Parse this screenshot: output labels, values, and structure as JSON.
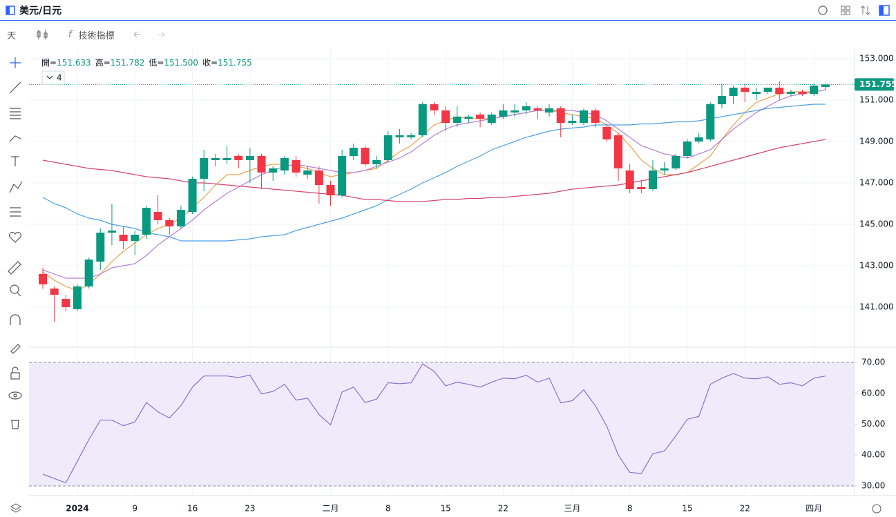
{
  "header": {
    "title": "美元/日元"
  },
  "toolbar": {
    "interval": "天",
    "indicators": "技術指標"
  },
  "chart_data": [
    {
      "type": "candlestick",
      "categories": [
        null,
        null,
        null,
        "2024",
        null,
        null,
        null,
        null,
        "9",
        null,
        null,
        null,
        null,
        "16",
        null,
        null,
        null,
        null,
        "23",
        null,
        null,
        null,
        null,
        null,
        null,
        "二月",
        null,
        null,
        null,
        null,
        "8",
        null,
        null,
        null,
        null,
        "15",
        null,
        null,
        null,
        null,
        "22",
        null,
        null,
        null,
        null,
        null,
        "三月",
        null,
        null,
        null,
        null,
        "8",
        null,
        null,
        null,
        null,
        "15",
        null,
        null,
        null,
        null,
        "22",
        null,
        null,
        null,
        null,
        null,
        "四月",
        null
      ],
      "open": [
        142.6,
        141.9,
        141.4,
        140.9,
        142.0,
        143.2,
        144.6,
        144.5,
        144.2,
        144.5,
        145.6,
        145.2,
        144.9,
        145.6,
        147.2,
        148.1,
        148.1,
        148.3,
        148.1,
        148.3,
        147.5,
        147.6,
        148.1,
        147.4,
        147.6,
        146.9,
        146.4,
        148.3,
        148.7,
        147.9,
        148.1,
        149.2,
        149.2,
        149.3,
        150.8,
        150.5,
        149.9,
        150.1,
        150.3,
        149.9,
        150.2,
        150.4,
        150.5,
        150.6,
        150.4,
        150.6,
        149.9,
        149.9,
        150.5,
        149.7,
        149.3,
        147.6,
        146.8,
        146.7,
        147.6,
        147.7,
        148.3,
        149.0,
        149.1,
        150.8,
        151.2,
        151.6,
        151.3,
        151.4,
        151.6,
        151.3,
        151.4,
        151.3,
        151.633
      ],
      "high": [
        142.9,
        142.0,
        141.6,
        142.1,
        143.4,
        144.8,
        146.0,
        144.9,
        144.7,
        145.9,
        146.4,
        145.3,
        145.9,
        147.3,
        148.6,
        148.4,
        148.8,
        148.4,
        148.7,
        148.4,
        147.8,
        148.3,
        148.3,
        147.8,
        147.8,
        147.1,
        148.6,
        148.9,
        148.8,
        148.3,
        149.5,
        149.6,
        149.4,
        150.9,
        150.9,
        150.7,
        150.7,
        150.3,
        150.4,
        150.4,
        150.8,
        150.8,
        150.9,
        150.7,
        150.8,
        150.7,
        150.3,
        150.6,
        150.6,
        149.8,
        149.4,
        147.9,
        147.1,
        148.1,
        148.0,
        148.4,
        149.1,
        149.4,
        150.9,
        151.8,
        151.7,
        151.8,
        151.6,
        151.6,
        151.9,
        151.5,
        151.5,
        151.8,
        151.782
      ],
      "low": [
        141.9,
        140.3,
        140.8,
        140.8,
        141.9,
        142.8,
        144.0,
        143.8,
        143.5,
        144.3,
        145.0,
        144.5,
        144.8,
        145.5,
        146.6,
        147.8,
        147.9,
        147.7,
        147.0,
        146.7,
        147.1,
        147.4,
        147.3,
        147.2,
        146.0,
        145.9,
        146.3,
        148.1,
        147.8,
        147.7,
        148.0,
        148.9,
        149.1,
        149.2,
        150.3,
        149.5,
        149.7,
        149.9,
        149.7,
        149.8,
        150.1,
        150.2,
        150.3,
        150.1,
        150.2,
        149.2,
        149.8,
        149.8,
        149.7,
        149.0,
        147.1,
        146.5,
        146.5,
        146.6,
        147.4,
        147.6,
        148.2,
        148.9,
        149.0,
        150.6,
        150.8,
        150.9,
        151.0,
        151.3,
        151.0,
        151.2,
        151.2,
        151.2,
        151.5
      ],
      "close": [
        142.1,
        141.6,
        141.0,
        142.0,
        143.3,
        144.6,
        144.7,
        144.2,
        144.5,
        145.8,
        145.2,
        144.9,
        145.7,
        147.2,
        148.2,
        148.2,
        148.2,
        148.1,
        148.3,
        147.5,
        147.7,
        148.2,
        147.5,
        147.6,
        146.9,
        146.4,
        148.3,
        148.7,
        147.9,
        148.1,
        149.3,
        149.3,
        149.3,
        150.8,
        150.5,
        149.9,
        150.2,
        150.2,
        150.1,
        150.3,
        150.5,
        150.5,
        150.7,
        150.5,
        150.6,
        149.9,
        150.0,
        150.5,
        149.9,
        149.1,
        147.7,
        146.7,
        146.7,
        147.6,
        147.7,
        148.3,
        149.0,
        149.2,
        150.8,
        151.2,
        151.6,
        151.4,
        151.4,
        151.6,
        151.3,
        151.4,
        151.3,
        151.7,
        151.755
      ],
      "up_color": "#089981",
      "down_color": "#f23645",
      "lines": [
        {
          "color": "#f0a04b",
          "values": [
            142.7,
            142.3,
            142.0,
            141.8,
            142.1,
            142.6,
            143.2,
            143.7,
            144.1,
            144.5,
            144.8,
            145.0,
            145.3,
            145.8,
            146.3,
            146.9,
            147.4,
            147.4,
            147.6,
            147.8,
            147.9,
            147.9,
            147.8,
            147.7,
            147.5,
            147.3,
            147.4,
            147.5,
            147.6,
            147.7,
            148.1,
            148.5,
            148.8,
            149.3,
            149.8,
            150.0,
            150.2,
            150.1,
            150.1,
            150.1,
            150.2,
            150.3,
            150.4,
            150.5,
            150.5,
            150.4,
            150.3,
            150.2,
            150.1,
            149.8,
            149.4,
            148.8,
            148.1,
            147.7,
            147.4,
            147.4,
            147.5,
            147.9,
            148.3,
            149.1,
            149.8,
            150.4,
            150.9,
            151.1,
            151.3,
            151.4,
            151.4,
            151.4,
            151.5
          ]
        },
        {
          "color": "#b57fd8",
          "values": [
            142.8,
            142.6,
            142.4,
            142.4,
            142.4,
            142.6,
            142.9,
            143.0,
            143.1,
            143.5,
            144.0,
            144.4,
            144.8,
            145.2,
            145.7,
            146.1,
            146.5,
            146.8,
            147.1,
            147.4,
            147.6,
            147.8,
            147.9,
            147.8,
            147.7,
            147.6,
            147.5,
            147.5,
            147.6,
            147.8,
            148.0,
            148.2,
            148.5,
            148.9,
            149.3,
            149.6,
            149.8,
            149.9,
            150.0,
            150.1,
            150.2,
            150.3,
            150.4,
            150.5,
            150.5,
            150.5,
            150.5,
            150.4,
            150.3,
            150.0,
            149.6,
            149.2,
            148.8,
            148.6,
            148.4,
            148.3,
            148.2,
            148.4,
            148.6,
            149.1,
            149.6,
            150.0,
            150.4,
            150.7,
            151.0,
            151.2,
            151.3,
            151.4,
            151.5
          ]
        },
        {
          "color": "#4a9fe8",
          "values": [
            146.3,
            146.0,
            145.8,
            145.5,
            145.3,
            145.2,
            145.0,
            144.9,
            144.8,
            144.6,
            144.5,
            144.4,
            144.2,
            144.2,
            144.2,
            144.2,
            144.2,
            144.25,
            144.3,
            144.4,
            144.45,
            144.5,
            144.7,
            144.85,
            145.0,
            145.15,
            145.3,
            145.5,
            145.7,
            145.9,
            146.2,
            146.45,
            146.7,
            147.0,
            147.25,
            147.5,
            147.8,
            148.05,
            148.3,
            148.6,
            148.8,
            149.0,
            149.2,
            149.35,
            149.5,
            149.6,
            149.65,
            149.7,
            149.8,
            149.8,
            149.8,
            149.8,
            149.85,
            149.85,
            149.9,
            149.95,
            149.95,
            150.0,
            150.1,
            150.2,
            150.3,
            150.4,
            150.5,
            150.6,
            150.65,
            150.7,
            150.75,
            150.8,
            150.8
          ]
        },
        {
          "color": "#d6456e",
          "values": [
            148.1,
            148.0,
            147.9,
            147.8,
            147.7,
            147.65,
            147.6,
            147.5,
            147.4,
            147.3,
            147.25,
            147.2,
            147.1,
            147.0,
            147.0,
            146.95,
            146.9,
            146.85,
            146.8,
            146.75,
            146.7,
            146.65,
            146.6,
            146.55,
            146.5,
            146.45,
            146.4,
            146.3,
            146.2,
            146.2,
            146.15,
            146.1,
            146.1,
            146.1,
            146.15,
            146.2,
            146.2,
            146.25,
            146.25,
            146.3,
            146.3,
            146.35,
            146.4,
            146.45,
            146.5,
            146.6,
            146.7,
            146.75,
            146.8,
            146.85,
            146.9,
            147.0,
            147.1,
            147.2,
            147.3,
            147.4,
            147.5,
            147.65,
            147.8,
            147.95,
            148.1,
            148.25,
            148.4,
            148.55,
            148.7,
            148.8,
            148.9,
            149.0,
            149.1
          ]
        }
      ],
      "ylim": [
        139.067,
        153.433
      ],
      "yticks": [
        {
          "value": 141,
          "label": "141.000"
        },
        {
          "value": 143,
          "label": "143.000"
        },
        {
          "value": 145,
          "label": "145.000"
        },
        {
          "value": 147,
          "label": "147.000"
        },
        {
          "value": 149,
          "label": "149.000"
        },
        {
          "value": 151,
          "label": "151.000"
        },
        {
          "value": 153,
          "label": "153.000"
        }
      ],
      "grid": true,
      "ohlc_keys": [
        "開=",
        "高=",
        "低=",
        "收="
      ],
      "ohlc_values": [
        151.633,
        151.782,
        151.5,
        151.755
      ],
      "ohlc_value_labels": [
        "151.633",
        "151.782",
        "151.500",
        "151.755"
      ],
      "indicator_count": 4,
      "last_price": 151.755
    },
    {
      "type": "line",
      "color": "#8e6fce",
      "band_color": "#efebfa",
      "values": [
        33.8,
        32.4,
        31.0,
        38,
        45,
        51.3,
        51.3,
        49.5,
        50.7,
        57,
        54,
        52,
        56,
        62,
        65.6,
        65.6,
        65.6,
        65.1,
        65.9,
        59.8,
        60.6,
        62.9,
        57.8,
        58.4,
        53.1,
        49.8,
        60.4,
        62.0,
        57.0,
        58.1,
        63.4,
        63.1,
        63.4,
        69.5,
        67.1,
        62.4,
        63.6,
        62.9,
        62.0,
        63.6,
        64.9,
        64.7,
        65.8,
        63.6,
        64.9,
        56.9,
        57.6,
        61.1,
        56.0,
        49.3,
        40.0,
        34.4,
        34.0,
        40.4,
        41.3,
        46.2,
        51.6,
        52.5,
        62.9,
        64.9,
        66.4,
        64.9,
        64.7,
        65.3,
        62.9,
        63.4,
        62.4,
        64.9,
        65.6
      ],
      "band": [
        30,
        70
      ],
      "ylim": [
        26.87,
        74.92
      ],
      "yticks": [
        {
          "value": 30,
          "label": "30.00"
        },
        {
          "value": 40,
          "label": "40.00"
        },
        {
          "value": 50,
          "label": "50.00"
        },
        {
          "value": 60,
          "label": "60.00"
        },
        {
          "value": 70,
          "label": "70.00"
        }
      ]
    }
  ]
}
